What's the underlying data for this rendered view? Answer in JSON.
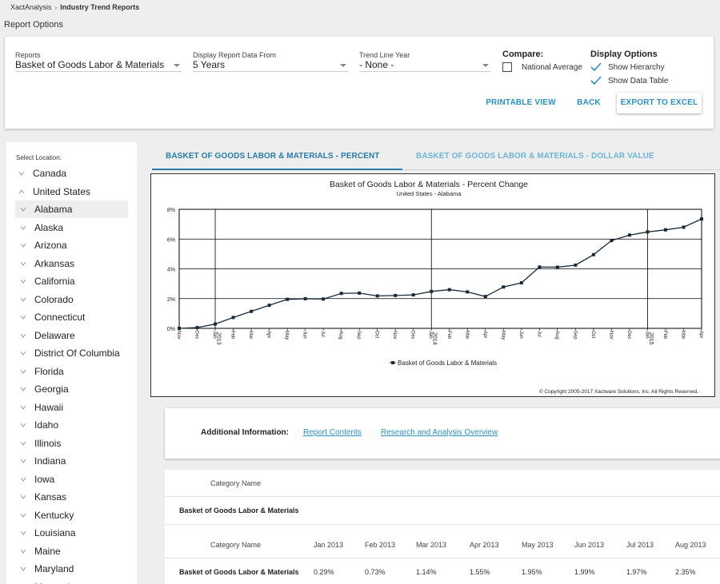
{
  "breadcrumb": {
    "parent": "XactAnalysis",
    "current": "Industry Trend Reports"
  },
  "page_title": "Report Options",
  "options": {
    "reports": {
      "label": "Reports",
      "value": "Basket of Goods Labor & Materials"
    },
    "display_from": {
      "label": "Display Report Data From",
      "value": "5 Years"
    },
    "trend_year": {
      "label": "Trend Line Year",
      "value": "- None -"
    },
    "compare": {
      "title": "Compare:",
      "national_average": "National Average",
      "national_average_checked": false
    },
    "display_options": {
      "title": "Display Options",
      "show_hierarchy": "Show Hierarchy",
      "show_data_table": "Show Data Table",
      "hierarchy_checked": true,
      "data_table_checked": true
    },
    "buttons": {
      "printable": "PRINTABLE VIEW",
      "back": "BACK",
      "export": "EXPORT TO EXCEL"
    }
  },
  "location": {
    "label": "Select Location:",
    "items": [
      {
        "label": "Canada",
        "level": 0,
        "expanded": false
      },
      {
        "label": "United States",
        "level": 0,
        "expanded": true
      },
      {
        "label": "Alabama",
        "level": 1,
        "selected": true
      },
      {
        "label": "Alaska",
        "level": 1
      },
      {
        "label": "Arizona",
        "level": 1
      },
      {
        "label": "Arkansas",
        "level": 1
      },
      {
        "label": "California",
        "level": 1
      },
      {
        "label": "Colorado",
        "level": 1
      },
      {
        "label": "Connecticut",
        "level": 1
      },
      {
        "label": "Delaware",
        "level": 1
      },
      {
        "label": "District Of Columbia",
        "level": 1
      },
      {
        "label": "Florida",
        "level": 1
      },
      {
        "label": "Georgia",
        "level": 1
      },
      {
        "label": "Hawaii",
        "level": 1
      },
      {
        "label": "Idaho",
        "level": 1
      },
      {
        "label": "Illinois",
        "level": 1
      },
      {
        "label": "Indiana",
        "level": 1
      },
      {
        "label": "Iowa",
        "level": 1
      },
      {
        "label": "Kansas",
        "level": 1
      },
      {
        "label": "Kentucky",
        "level": 1
      },
      {
        "label": "Louisiana",
        "level": 1
      },
      {
        "label": "Maine",
        "level": 1
      },
      {
        "label": "Maryland",
        "level": 1
      },
      {
        "label": "Massachusetts",
        "level": 1
      }
    ]
  },
  "tabs": [
    {
      "label": "BASKET OF GOODS LABOR & MATERIALS - PERCENT CHANGE",
      "active": true
    },
    {
      "label": "BASKET OF GOODS LABOR & MATERIALS - DOLLAR VALUE CHANGE",
      "active": false
    }
  ],
  "chart_data": {
    "type": "line",
    "title": "Basket of Goods Labor & Materials - Percent Change",
    "subtitle": "United States - Alabama",
    "x": [
      "Nov",
      "Dec",
      "Jan",
      "Feb",
      "Mar",
      "Apr",
      "May",
      "Jun",
      "Jul",
      "Aug",
      "Sep",
      "Oct",
      "Nov",
      "Dec",
      "Jan",
      "Feb",
      "Mar",
      "Apr",
      "May",
      "Jun",
      "Jul",
      "Aug",
      "Sep",
      "Oct",
      "Nov",
      "Dec",
      "Jan",
      "Feb",
      "Mar",
      "Apr"
    ],
    "year_markers": [
      {
        "index": 2,
        "label": "2013"
      },
      {
        "index": 14,
        "label": "2014"
      },
      {
        "index": 26,
        "label": "2015"
      }
    ],
    "series": [
      {
        "name": "Basket of Goods Labor & Materials",
        "values": [
          0.0,
          0.05,
          0.29,
          0.73,
          1.14,
          1.55,
          1.95,
          1.99,
          1.97,
          2.35,
          2.37,
          2.18,
          2.21,
          2.25,
          2.48,
          2.6,
          2.45,
          2.14,
          2.78,
          3.06,
          4.12,
          4.11,
          4.25,
          4.95,
          5.9,
          6.27,
          6.48,
          6.62,
          6.8,
          7.35
        ]
      }
    ],
    "y_ticks": [
      "0%",
      "2%",
      "4%",
      "6%",
      "8%"
    ],
    "ylim": [
      0,
      8
    ],
    "grid": true,
    "legend": "bottom-center",
    "copyright": "© Copyright 2005-2017 Xactware Solutions, Inc. All Rights Reserved.",
    "line_color": "#1a2a3a"
  },
  "additional_info": {
    "label": "Additional Information:",
    "links": [
      "Report Contents",
      "Research and Analysis Overview"
    ]
  },
  "table": {
    "summary_header": "Category Name",
    "summary_row": "Basket of Goods Labor & Materials",
    "headers": [
      "Category Name",
      "Jan 2013",
      "Feb 2013",
      "Mar 2013",
      "Apr 2013",
      "May 2013",
      "Jun 2013",
      "Jul 2013",
      "Aug 2013"
    ],
    "rows": [
      [
        "Basket of Goods Labor & Materials",
        "0.29%",
        "0.73%",
        "1.14%",
        "1.55%",
        "1.95%",
        "1.99%",
        "1.97%",
        "2.35%"
      ]
    ]
  },
  "colors": {
    "accent": "#2a8fbd",
    "tab_active": "#2a7ba6",
    "tab_inactive": "#6fb4d6"
  }
}
